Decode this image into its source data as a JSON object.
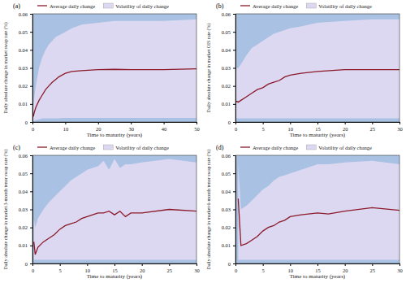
{
  "chart_data": [
    {
      "type": "line",
      "title": "(a)",
      "x_label": "Time to maturity (years)",
      "y_label": "Daily absolute change in market swap rate (%)",
      "x": [
        0.25,
        0.5,
        1,
        2,
        3,
        4,
        5,
        6,
        7,
        8,
        9,
        10,
        12,
        15,
        20,
        25,
        30,
        40,
        50
      ],
      "series": [
        {
          "name": "Average daily change",
          "type": "line",
          "color": "#8b1a2a",
          "values": [
            0.003,
            0.005,
            0.008,
            0.012,
            0.015,
            0.018,
            0.02,
            0.022,
            0.0235,
            0.025,
            0.026,
            0.027,
            0.028,
            0.0285,
            0.029,
            0.0292,
            0.029,
            0.029,
            0.0295
          ]
        },
        {
          "name": "Volatility of daily change",
          "type": "area",
          "color": "#dcd8f2",
          "values": [
            0.008,
            0.013,
            0.02,
            0.03,
            0.036,
            0.04,
            0.043,
            0.045,
            0.047,
            0.048,
            0.049,
            0.05,
            0.052,
            0.054,
            0.055,
            0.056,
            0.056,
            0.056,
            0.057
          ],
          "lower": [
            0.0003,
            0.0005,
            0.001,
            0.0015,
            0.002,
            0.002,
            0.002,
            0.002,
            0.002,
            0.002,
            0.0022,
            0.0022,
            0.0022,
            0.0022,
            0.0022,
            0.0022,
            0.0022,
            0.0022,
            0.0022
          ]
        }
      ],
      "xlim": [
        0,
        50
      ],
      "xticks": [
        0,
        10,
        20,
        30,
        40,
        50
      ],
      "ylim": [
        0,
        0.06
      ],
      "yticks": [
        0,
        0.01,
        0.02,
        0.03,
        0.04,
        0.05,
        0.06
      ],
      "legend": "top"
    },
    {
      "type": "line",
      "title": "(b)",
      "x_label": "Time to maturity (years)",
      "y_label": "Daily absolute change in market OIS rate (%)",
      "x": [
        0.083,
        0.25,
        0.5,
        1,
        2,
        3,
        4,
        5,
        6,
        7,
        8,
        9,
        10,
        12,
        15,
        20,
        25,
        30
      ],
      "series": [
        {
          "name": "Average daily change",
          "type": "line",
          "color": "#8b1a2a",
          "values": [
            0.011,
            0.0115,
            0.011,
            0.012,
            0.014,
            0.016,
            0.018,
            0.019,
            0.021,
            0.022,
            0.023,
            0.025,
            0.026,
            0.027,
            0.028,
            0.029,
            0.029,
            0.029
          ]
        },
        {
          "name": "Volatility of daily change",
          "type": "area",
          "color": "#dcd8f2",
          "values": [
            0.03,
            0.03,
            0.03,
            0.032,
            0.037,
            0.041,
            0.043,
            0.045,
            0.047,
            0.049,
            0.05,
            0.051,
            0.052,
            0.053,
            0.055,
            0.056,
            0.057,
            0.057
          ],
          "lower": [
            0.002,
            0.002,
            0.002,
            0.002,
            0.002,
            0.002,
            0.002,
            0.002,
            0.002,
            0.002,
            0.002,
            0.002,
            0.002,
            0.002,
            0.002,
            0.002,
            0.002,
            0.002
          ]
        }
      ],
      "xlim": [
        0,
        30
      ],
      "xticks": [
        0,
        5,
        10,
        15,
        20,
        25,
        30
      ],
      "ylim": [
        0,
        0.06
      ],
      "yticks": [
        0,
        0.01,
        0.02,
        0.03,
        0.04,
        0.05,
        0.06
      ],
      "legend": "top"
    },
    {
      "type": "line",
      "title": "(c)",
      "x_label": "Time to maturity (years)",
      "y_label": "Daily absolute change in market 3-month tenor swap rate (%)",
      "x": [
        0.25,
        0.5,
        1,
        2,
        3,
        4,
        5,
        6,
        7,
        8,
        9,
        10,
        11,
        12,
        13,
        14,
        15,
        16,
        17,
        18,
        20,
        25,
        30
      ],
      "series": [
        {
          "name": "Average daily change",
          "type": "line",
          "color": "#8b1a2a",
          "values": [
            0.012,
            0.005,
            0.009,
            0.012,
            0.014,
            0.016,
            0.019,
            0.021,
            0.022,
            0.023,
            0.025,
            0.026,
            0.027,
            0.028,
            0.028,
            0.029,
            0.027,
            0.029,
            0.026,
            0.028,
            0.028,
            0.03,
            0.029
          ]
        },
        {
          "name": "Volatility of daily change",
          "type": "area",
          "color": "#dcd8f2",
          "values": [
            0.025,
            0.02,
            0.025,
            0.03,
            0.034,
            0.037,
            0.04,
            0.043,
            0.046,
            0.048,
            0.05,
            0.052,
            0.053,
            0.054,
            0.057,
            0.052,
            0.058,
            0.053,
            0.055,
            0.055,
            0.056,
            0.058,
            0.056
          ],
          "lower": [
            0.002,
            0.002,
            0.002,
            0.002,
            0.002,
            0.002,
            0.002,
            0.002,
            0.002,
            0.002,
            0.002,
            0.002,
            0.002,
            0.002,
            0.002,
            0.002,
            0.002,
            0.002,
            0.002,
            0.002,
            0.002,
            0.002,
            0.002
          ]
        }
      ],
      "xlim": [
        0,
        30
      ],
      "xticks": [
        0,
        5,
        10,
        15,
        20,
        25,
        30
      ],
      "ylim": [
        0,
        0.06
      ],
      "yticks": [
        0,
        0.01,
        0.02,
        0.03,
        0.04,
        0.05,
        0.06
      ],
      "legend": "top"
    },
    {
      "type": "line",
      "title": "(d)",
      "x_label": "Time to maturity (years)",
      "y_label": "Daily absolute change in market 6-month tenor swap rate (%)",
      "x": [
        0.5,
        1,
        2,
        3,
        4,
        5,
        6,
        7,
        8,
        9,
        10,
        12,
        15,
        17,
        20,
        25,
        30
      ],
      "series": [
        {
          "name": "Average daily change",
          "type": "line",
          "color": "#8b1a2a",
          "values": [
            0.036,
            0.01,
            0.011,
            0.013,
            0.015,
            0.018,
            0.02,
            0.021,
            0.023,
            0.024,
            0.026,
            0.027,
            0.028,
            0.0275,
            0.029,
            0.031,
            0.0295
          ]
        },
        {
          "name": "Volatility of daily change",
          "type": "area",
          "color": "#dcd8f2",
          "values": [
            0.055,
            0.03,
            0.032,
            0.035,
            0.038,
            0.041,
            0.043,
            0.046,
            0.048,
            0.049,
            0.05,
            0.052,
            0.055,
            0.055,
            0.056,
            0.057,
            0.055
          ],
          "lower": [
            0.002,
            0.002,
            0.002,
            0.002,
            0.002,
            0.002,
            0.002,
            0.002,
            0.002,
            0.002,
            0.002,
            0.002,
            0.002,
            0.002,
            0.002,
            0.002,
            0.002
          ]
        }
      ],
      "xlim": [
        0,
        30
      ],
      "xticks": [
        0,
        5,
        10,
        15,
        20,
        25,
        30
      ],
      "ylim": [
        0,
        0.06
      ],
      "yticks": [
        0,
        0.01,
        0.02,
        0.03,
        0.04,
        0.05,
        0.06
      ],
      "legend": "top"
    }
  ]
}
